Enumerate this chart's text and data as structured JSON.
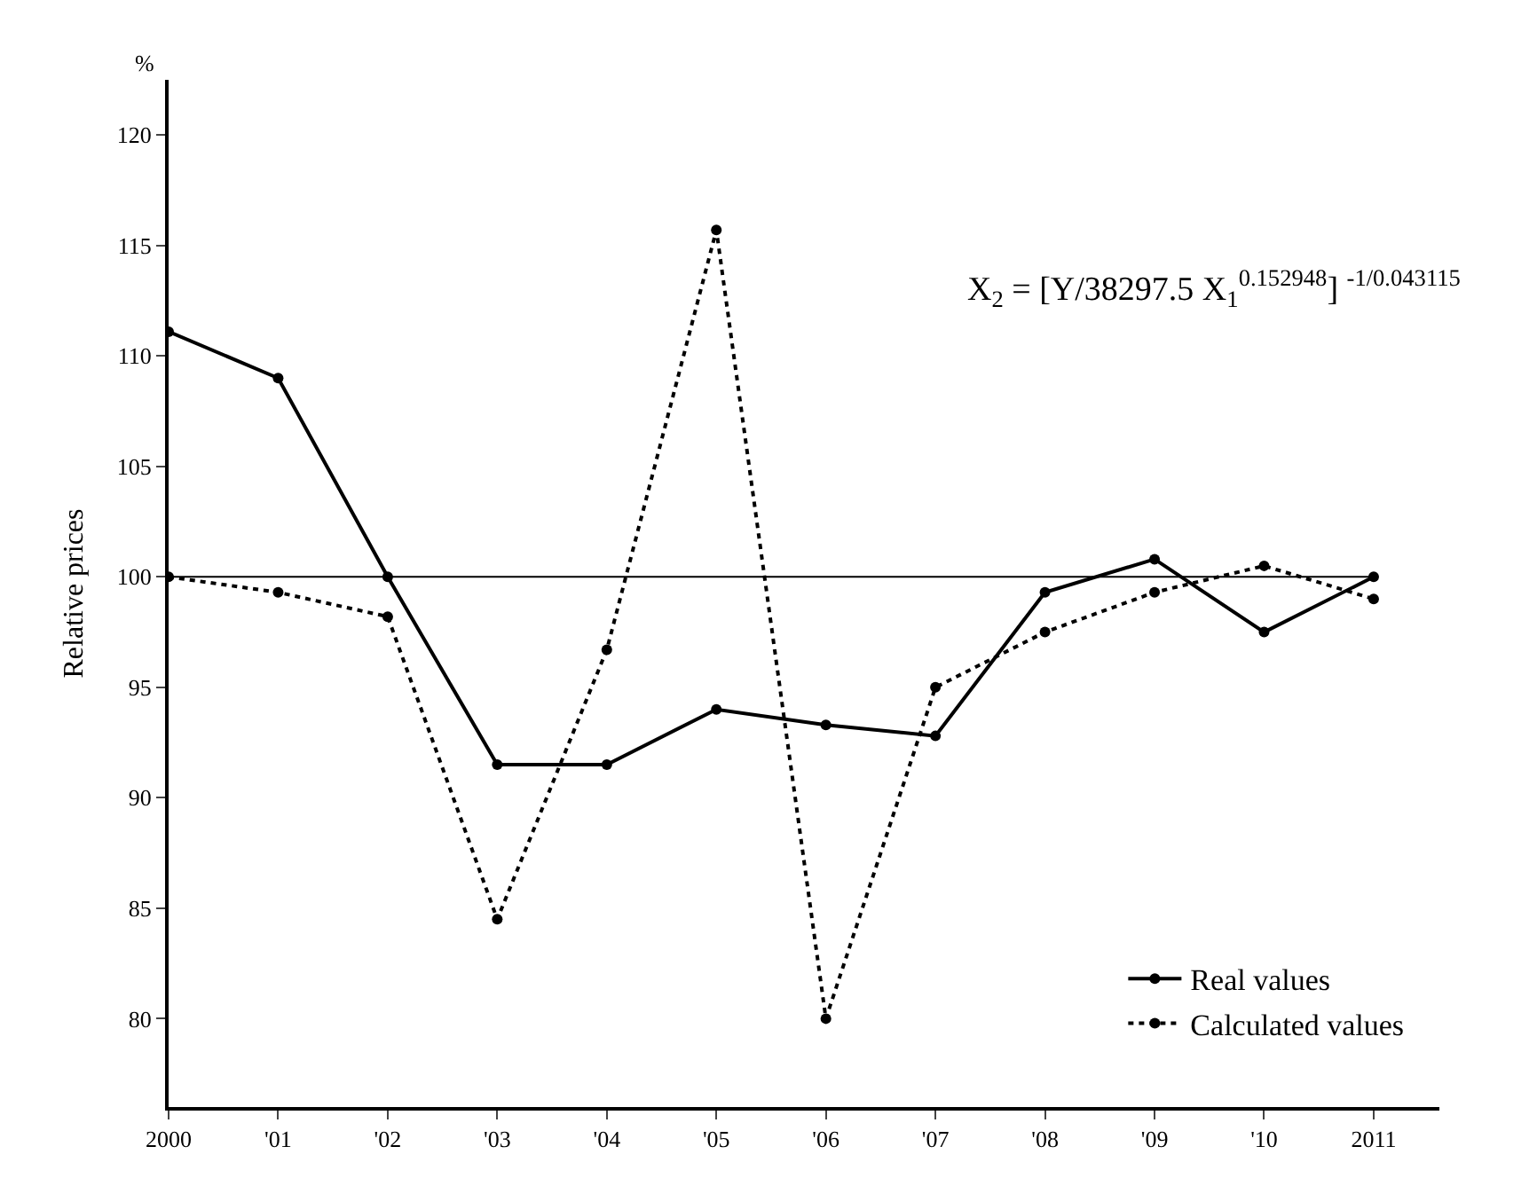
{
  "chart_data": {
    "type": "line",
    "ylabel": "Relative prices",
    "categories": [
      "2000",
      "'01",
      "'02",
      "'03",
      "'04",
      "'05",
      "'06",
      "'07",
      "'08",
      "'09",
      "'10",
      "2011"
    ],
    "series": [
      {
        "name": "Real values",
        "color": "#000000",
        "line_style": "solid",
        "values": [
          111.1,
          109.0,
          100.0,
          91.5,
          91.5,
          94.0,
          93.3,
          92.8,
          99.3,
          100.8,
          97.5,
          100.0
        ]
      },
      {
        "name": "Calculated values",
        "color": "#000000",
        "line_style": "dotted",
        "values": [
          100.0,
          99.3,
          98.2,
          84.5,
          96.7,
          115.7,
          80.0,
          95.0,
          97.5,
          99.3,
          100.5,
          99.0
        ]
      }
    ],
    "ylim": [
      76,
      122.5
    ],
    "yticks": [
      80,
      85,
      90,
      95,
      100,
      105,
      110,
      115,
      120
    ],
    "ref_lines": [
      {
        "axis": "y",
        "value": 100,
        "color": "#000000"
      }
    ],
    "annotations": [
      "%",
      "X$_{2}$ = [Y/38297.5 X$_{1}$$^{0.152948}$] $^{-1/0.043115}$"
    ],
    "marker": "circle",
    "legend": "bottom right"
  }
}
